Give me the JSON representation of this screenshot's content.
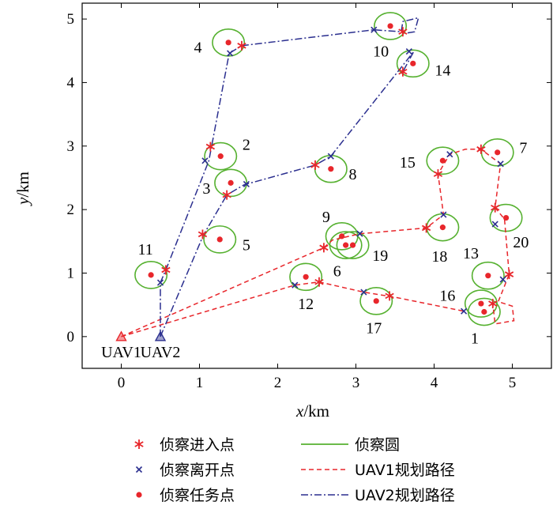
{
  "chart_data": {
    "type": "scatter",
    "xlabel": "x/km",
    "xlabel_var": "x",
    "xlabel_unit": "/km",
    "ylabel": "y/km",
    "ylabel_var": "y",
    "ylabel_unit": "/km",
    "xlim": [
      -0.5,
      5.5
    ],
    "ylim": [
      -0.5,
      5.25
    ],
    "xticks": [
      0,
      1,
      2,
      3,
      4,
      5
    ],
    "yticks": [
      0,
      1,
      2,
      3,
      4,
      5
    ],
    "circle_radius_km": 0.2,
    "colors": {
      "uav1": "#e8262b",
      "uav2": "#2b2f8f",
      "circle": "#56b130",
      "task": "#e8262b",
      "entry": "#e8262b",
      "exit": "#2b2f8f",
      "axis": "#000000"
    },
    "targets": [
      {
        "id": "1",
        "x": 4.64,
        "y": 0.39,
        "label_x": 4.52,
        "label_y": -0.02
      },
      {
        "id": "2",
        "x": 1.27,
        "y": 2.84,
        "label_x": 1.6,
        "label_y": 3.03
      },
      {
        "id": "3",
        "x": 1.4,
        "y": 2.42,
        "label_x": 1.09,
        "label_y": 2.34
      },
      {
        "id": "4",
        "x": 1.37,
        "y": 4.63,
        "label_x": 0.98,
        "label_y": 4.56
      },
      {
        "id": "5",
        "x": 1.26,
        "y": 1.53,
        "label_x": 1.6,
        "label_y": 1.45
      },
      {
        "id": "6",
        "x": 2.87,
        "y": 1.44,
        "label_x": 2.76,
        "label_y": 1.04
      },
      {
        "id": "7",
        "x": 4.81,
        "y": 2.9,
        "label_x": 5.14,
        "label_y": 2.98
      },
      {
        "id": "8",
        "x": 2.68,
        "y": 2.64,
        "label_x": 2.96,
        "label_y": 2.56
      },
      {
        "id": "9",
        "x": 2.82,
        "y": 1.58,
        "label_x": 2.62,
        "label_y": 1.89
      },
      {
        "id": "10",
        "x": 3.44,
        "y": 4.89,
        "label_x": 3.32,
        "label_y": 4.5
      },
      {
        "id": "11",
        "x": 0.38,
        "y": 0.97,
        "label_x": 0.31,
        "label_y": 1.38
      },
      {
        "id": "12",
        "x": 2.36,
        "y": 0.94,
        "label_x": 2.36,
        "label_y": 0.52
      },
      {
        "id": "13",
        "x": 4.69,
        "y": 0.96,
        "label_x": 4.47,
        "label_y": 1.32
      },
      {
        "id": "14",
        "x": 3.73,
        "y": 4.3,
        "label_x": 4.11,
        "label_y": 4.2
      },
      {
        "id": "15",
        "x": 4.11,
        "y": 2.77,
        "label_x": 3.66,
        "label_y": 2.75
      },
      {
        "id": "16",
        "x": 4.6,
        "y": 0.52,
        "label_x": 4.17,
        "label_y": 0.65
      },
      {
        "id": "17",
        "x": 3.26,
        "y": 0.56,
        "label_x": 3.23,
        "label_y": 0.14
      },
      {
        "id": "18",
        "x": 4.11,
        "y": 1.72,
        "label_x": 4.07,
        "label_y": 1.27
      },
      {
        "id": "19",
        "x": 2.96,
        "y": 1.44,
        "label_x": 3.31,
        "label_y": 1.28
      },
      {
        "id": "20",
        "x": 4.92,
        "y": 1.87,
        "label_x": 5.11,
        "label_y": 1.49
      }
    ],
    "uav1_path": [
      [
        0,
        0
      ],
      [
        2.59,
        1.4
      ],
      [
        2.7,
        1.52
      ],
      [
        3.05,
        1.62
      ],
      [
        3.9,
        1.71
      ],
      [
        4.12,
        1.92
      ],
      [
        4.05,
        2.56
      ],
      [
        4.2,
        2.87
      ],
      [
        4.4,
        2.95
      ],
      [
        4.6,
        2.95
      ],
      [
        4.85,
        2.72
      ],
      [
        4.78,
        2.03
      ],
      [
        4.9,
        1.85
      ],
      [
        4.96,
        0.98
      ],
      [
        4.82,
        0.55
      ],
      [
        5.0,
        0.48
      ],
      [
        5.02,
        0.25
      ],
      [
        4.78,
        0.2
      ],
      [
        4.75,
        0.52
      ]
    ],
    "uav1_path2": [
      [
        0,
        0
      ],
      [
        2.22,
        0.81
      ],
      [
        2.53,
        0.86
      ],
      [
        3.1,
        0.7
      ],
      [
        3.5,
        0.62
      ],
      [
        4.38,
        0.4
      ]
    ],
    "uav2_path": [
      [
        0.5,
        0
      ],
      [
        1.05,
        1.6
      ],
      [
        1.35,
        2.23
      ],
      [
        1.57,
        2.39
      ],
      [
        2.48,
        2.7
      ],
      [
        2.68,
        2.84
      ],
      [
        3.74,
        4.49
      ],
      [
        3.6,
        4.17
      ]
    ],
    "uav2_path2": [
      [
        0.5,
        0
      ],
      [
        0.5,
        0.85
      ],
      [
        0.57,
        1.05
      ],
      [
        1.12,
        2.77
      ],
      [
        1.38,
        4.46
      ],
      [
        1.54,
        4.58
      ],
      [
        3.23,
        4.83
      ],
      [
        3.58,
        4.8
      ],
      [
        3.6,
        4.96
      ],
      [
        3.8,
        5.02
      ],
      [
        3.75,
        4.8
      ],
      [
        3.65,
        4.78
      ]
    ],
    "entry_points": [
      [
        1.14,
        2.99
      ],
      [
        1.35,
        2.23
      ],
      [
        1.04,
        1.61
      ],
      [
        0.57,
        1.05
      ],
      [
        1.54,
        4.58
      ],
      [
        2.48,
        2.7
      ],
      [
        2.59,
        1.4
      ],
      [
        2.53,
        0.86
      ],
      [
        3.6,
        4.8
      ],
      [
        3.6,
        4.17
      ],
      [
        3.9,
        1.71
      ],
      [
        4.05,
        2.56
      ],
      [
        4.6,
        2.95
      ],
      [
        4.78,
        2.03
      ],
      [
        4.96,
        0.98
      ],
      [
        4.75,
        0.52
      ],
      [
        3.43,
        0.64
      ]
    ],
    "exit_points": [
      [
        0.5,
        0.85
      ],
      [
        1.39,
        4.46
      ],
      [
        1.07,
        2.77
      ],
      [
        1.6,
        2.4
      ],
      [
        2.68,
        2.84
      ],
      [
        3.23,
        4.83
      ],
      [
        3.68,
        4.49
      ],
      [
        3.05,
        1.62
      ],
      [
        4.12,
        1.92
      ],
      [
        4.2,
        2.87
      ],
      [
        4.85,
        2.72
      ],
      [
        4.78,
        1.77
      ],
      [
        4.88,
        0.9
      ],
      [
        4.38,
        0.4
      ],
      [
        3.1,
        0.7
      ],
      [
        2.22,
        0.81
      ]
    ],
    "starts": [
      {
        "name": "UAV1",
        "x": 0,
        "y": 0
      },
      {
        "name": "UAV2",
        "x": 0.5,
        "y": 0
      }
    ],
    "legend": {
      "placement": "bottom",
      "entries": [
        {
          "key": "entry",
          "label": "侦察进入点"
        },
        {
          "key": "exit",
          "label": "侦察离开点"
        },
        {
          "key": "task",
          "label": "侦察任务点"
        },
        {
          "key": "circle",
          "label": "侦察圆"
        },
        {
          "key": "uav1",
          "label": "UAV1规划路径"
        },
        {
          "key": "uav2",
          "label": "UAV2规划路径"
        }
      ]
    }
  }
}
